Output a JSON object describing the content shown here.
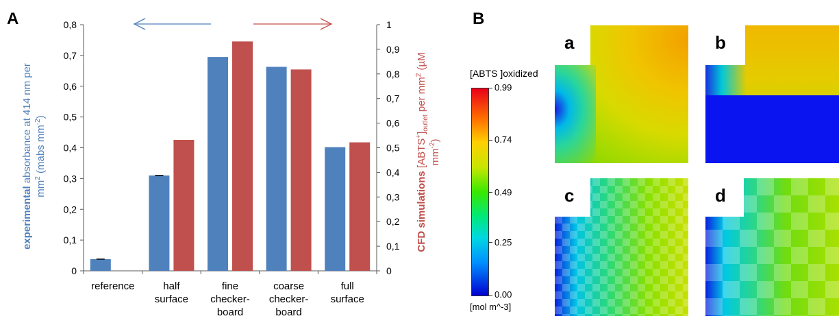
{
  "panel_labels": {
    "a_panel": "A",
    "b_panel": "B"
  },
  "colors": {
    "experimental": "#4f81bd",
    "simulation": "#c0504d",
    "axis": "#595959"
  },
  "chart_data": {
    "type": "bar",
    "categories": [
      [
        "reference"
      ],
      [
        "half",
        "surface"
      ],
      [
        "fine",
        "checker-",
        "board"
      ],
      [
        "coarse",
        "checker-",
        "board"
      ],
      [
        "full",
        "surface"
      ]
    ],
    "left_axis": {
      "ylim": [
        0,
        0.8
      ],
      "ticks": [
        "0",
        "0,1",
        "0,2",
        "0,3",
        "0,4",
        "0,5",
        "0,6",
        "0,7",
        "0,8"
      ],
      "label_bold": "experimental",
      "label_rest": " absorbance at 414 nm per",
      "label_line2_a": "mm",
      "label_line2_sup": "2",
      "label_line2_b": " (mabs mm",
      "label_line2_sup2": "-2",
      "label_line2_c": ")"
    },
    "right_axis": {
      "ylim": [
        0,
        1
      ],
      "ticks": [
        "0",
        "0,1",
        "0,2",
        "0,3",
        "0,4",
        "0,5",
        "0,6",
        "0,7",
        "0,8",
        "0,9",
        "1"
      ],
      "label_bold": "CFD simulations",
      "label_a": " [ABTS",
      "label_sup": "+",
      "label_b": "]",
      "label_sub": "outlet",
      "label_c": " per mm",
      "label_sup2": "2",
      "label_d": " (µM",
      "label_line2_a": "mm",
      "label_line2_sup": "-2",
      "label_line2_b": ")"
    },
    "series": [
      {
        "values": [
          0.038,
          0.31,
          0.695,
          0.663,
          0.402
        ],
        "axis": "left",
        "color": "#4f81bd"
      },
      {
        "values": [
          null,
          0.532,
          0.932,
          0.818,
          0.522
        ],
        "axis": "right",
        "color": "#c0504d"
      }
    ],
    "error_bars_on": [
      0,
      1
    ],
    "arrows": [
      "left (experimental axis)",
      "right (simulation axis)"
    ]
  },
  "colorbar": {
    "title": "[ABTS ]oxidized",
    "ticks": [
      "0.99",
      "0.74",
      "0.49",
      "0.25",
      "0.00"
    ],
    "tick_values": [
      0.99,
      0.74,
      0.49,
      0.25,
      0.0
    ],
    "range": [
      0.0,
      0.99
    ],
    "unit": "[mol m^-3]"
  },
  "subpanels": [
    {
      "letter": "a",
      "pattern": "full surface"
    },
    {
      "letter": "b",
      "pattern": "half surface"
    },
    {
      "letter": "c",
      "pattern": "fine checkerboard"
    },
    {
      "letter": "d",
      "pattern": "coarse checkerboard"
    }
  ]
}
